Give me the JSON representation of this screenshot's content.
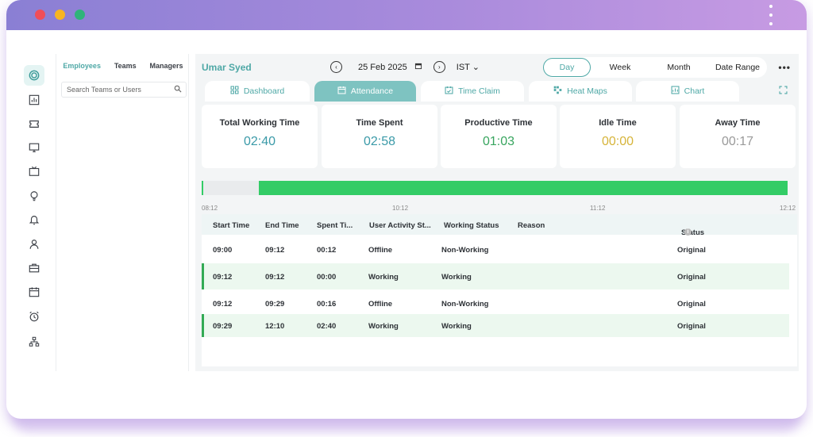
{
  "colors": {
    "accent": "#4ea8a6",
    "green": "#33cc66",
    "titlebar": "#a98bdc"
  },
  "window": {
    "traffic_lights": [
      "#f04e59",
      "#f7b521",
      "#2fb37a"
    ]
  },
  "iconbar": [
    "timer-icon",
    "reports-icon",
    "ticket-icon",
    "monitor-icon",
    "tv-icon",
    "lightbulb-icon",
    "alarm-bell-icon",
    "user-icon",
    "briefcase-icon",
    "calendar-icon",
    "alarm-clock-icon",
    "org-chart-icon"
  ],
  "teams_panel": {
    "tabs": [
      "Employees",
      "Teams",
      "Managers"
    ],
    "search_placeholder": "Search Teams or Users"
  },
  "header": {
    "user_name": "Umar Syed",
    "date": "25 Feb 2025",
    "timezone": "IST",
    "views": [
      "Day",
      "Week",
      "Month",
      "Date Range"
    ],
    "selected_view": "Day"
  },
  "tabs": [
    {
      "label": "Dashboard",
      "icon": "dashboard-icon"
    },
    {
      "label": "Attendance",
      "icon": "calendar-icon"
    },
    {
      "label": "Time Claim",
      "icon": "calendar-check-icon"
    },
    {
      "label": "Heat Maps",
      "icon": "heatmap-icon"
    },
    {
      "label": "Chart",
      "icon": "chart-icon"
    }
  ],
  "active_tab": "Attendance",
  "summary": [
    {
      "label": "Total Working Time",
      "value": "02:40",
      "color": "#3b9aa8"
    },
    {
      "label": "Time Spent",
      "value": "02:58",
      "color": "#3b9aa8"
    },
    {
      "label": "Productive Time",
      "value": "01:03",
      "color": "#38a55f"
    },
    {
      "label": "Idle Time",
      "value": "00:00",
      "color": "#d6b43a"
    },
    {
      "label": "Away Time",
      "value": "00:17",
      "color": "#9a9a9a"
    }
  ],
  "timeline": {
    "tick_labels": [
      "08:12",
      "10:12",
      "11:12",
      "12:12"
    ]
  },
  "table": {
    "columns": [
      "Start Time",
      "End Time",
      "Spent Ti...",
      "User Activity St...",
      "Working Status",
      "Reason",
      "Status"
    ],
    "rows": [
      {
        "start": "09:00",
        "end": "09:12",
        "spent": "00:12",
        "activity": "Offline",
        "working_status": "Non-Working",
        "reason": "",
        "status": "Original"
      },
      {
        "start": "09:12",
        "end": "09:12",
        "spent": "00:00",
        "activity": "Working",
        "working_status": "Working",
        "reason": "",
        "status": "Original"
      },
      {
        "start": "09:12",
        "end": "09:29",
        "spent": "00:16",
        "activity": "Offline",
        "working_status": "Non-Working",
        "reason": "",
        "status": "Original"
      },
      {
        "start": "09:29",
        "end": "12:10",
        "spent": "02:40",
        "activity": "Working",
        "working_status": "Working",
        "reason": "",
        "status": "Original"
      }
    ]
  }
}
